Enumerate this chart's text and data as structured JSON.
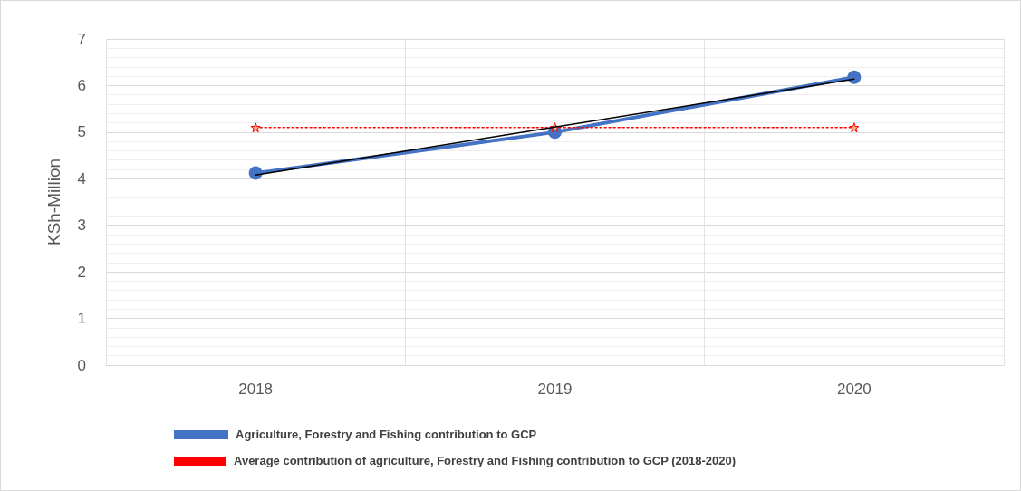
{
  "chart_data": {
    "type": "line",
    "ylabel": "KSh-Million",
    "categories": [
      "2018",
      "2019",
      "2020"
    ],
    "series": [
      {
        "name": "Agriculture, Forestry and Fishing contribution to GCP",
        "color": "#4472c4",
        "values": [
          4.12,
          5.0,
          6.18
        ],
        "marker": "circle",
        "line_style": "solid"
      },
      {
        "name": "Average contribution of agriculture, Forestry and Fishing contribution to GCP (2018-2020)",
        "color": "#ff0000",
        "values": [
          5.1,
          5.1,
          5.1
        ],
        "marker": "star",
        "line_style": "dotted"
      },
      {
        "color": "#000000",
        "values": [
          4.08,
          5.11,
          6.14
        ],
        "marker": "none",
        "line_style": "solid"
      }
    ],
    "ylim": [
      0,
      7
    ],
    "yticks": [
      0,
      1,
      2,
      3,
      4,
      5,
      6,
      7
    ],
    "grid": true,
    "legend": "bottom"
  }
}
